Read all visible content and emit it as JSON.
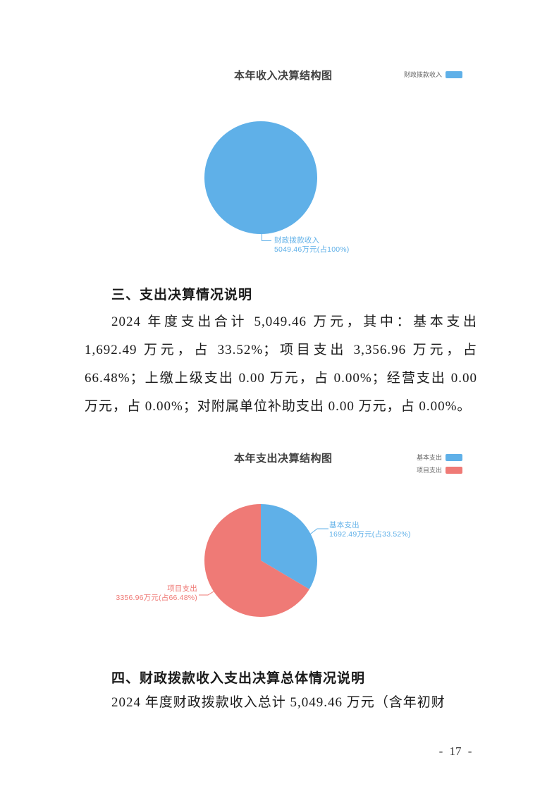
{
  "colors": {
    "blue": "#5fb0e8",
    "red": "#ef7a76",
    "chart_title": "#404040",
    "legend_text": "#666666",
    "body_text": "#1a1a1a",
    "page_number": "#3a3a3a"
  },
  "chart_data": [
    {
      "type": "pie",
      "title": "本年收入决算结构图",
      "unit": "万元",
      "legend_position": "top-right",
      "slices": [
        {
          "name": "财政拨款收入",
          "value": 5049.46,
          "percent": 100,
          "color": "blue",
          "callout_line1": "财政拨款收入",
          "callout_line2": "5049.46万元(占100%)"
        }
      ]
    },
    {
      "type": "pie",
      "title": "本年支出决算结构图",
      "unit": "万元",
      "legend_position": "top-right",
      "slices": [
        {
          "name": "基本支出",
          "value": 1692.49,
          "percent": 33.52,
          "color": "blue",
          "callout_line1": "基本支出",
          "callout_line2": "1692.49万元(占33.52%)"
        },
        {
          "name": "项目支出",
          "value": 3356.96,
          "percent": 66.48,
          "color": "red",
          "callout_line1": "项目支出",
          "callout_line2": "3356.96万元(占66.48%)"
        }
      ]
    }
  ],
  "sections": [
    {
      "heading": "三、支出决算情况说明",
      "paragraph": "2024 年度支出合计 5,049.46 万元，其中：基本支出 1,692.49 万元，占 33.52%；项目支出 3,356.96 万元，占 66.48%；上缴上级支出 0.00 万元，占 0.00%；经营支出 0.00 万元，占 0.00%；对附属单位补助支出 0.00 万元，占 0.00%。"
    },
    {
      "heading": "四、财政拨款收入支出决算总体情况说明",
      "paragraph": "2024 年度财政拨款收入总计 5,049.46 万元（含年初财"
    }
  ],
  "page": {
    "number_label": "- 17 -"
  }
}
